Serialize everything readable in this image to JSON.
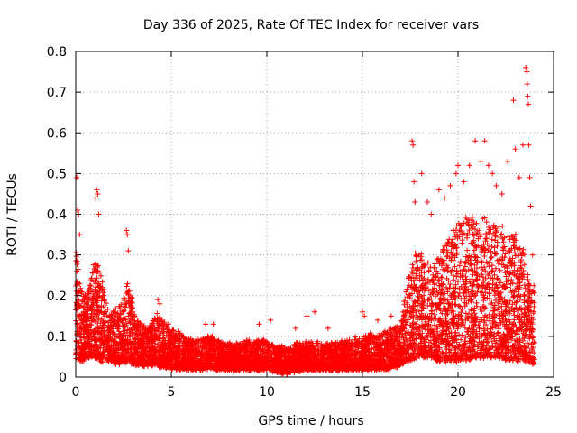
{
  "chart_data": {
    "type": "scatter",
    "title": "Day 336 of 2025, Rate Of TEC Index for receiver vars",
    "xlabel": "GPS time / hours",
    "ylabel": "ROTI / TECUs",
    "xlim": [
      0,
      25
    ],
    "ylim": [
      0,
      0.8
    ],
    "x_ticks": [
      0,
      5,
      10,
      15,
      20,
      25
    ],
    "y_ticks": [
      0,
      0.1,
      0.2,
      0.3,
      0.4,
      0.5,
      0.6,
      0.7,
      0.8
    ],
    "x_tick_labels": [
      "0",
      "5",
      "10",
      "15",
      "20",
      "25"
    ],
    "y_tick_labels": [
      "0",
      "0.1",
      "0.2",
      "0.3",
      "0.4",
      "0.5",
      "0.6",
      "0.7",
      "0.8"
    ],
    "grid": true,
    "marker": "+",
    "color": "#ff0000",
    "envelope": {
      "description_hours": [
        0,
        0.3,
        0.6,
        1.0,
        1.3,
        1.8,
        2.3,
        2.7,
        3.2,
        3.8,
        4.3,
        5.0,
        6.0,
        7.0,
        8.0,
        9.0,
        10.0,
        11.0,
        12.0,
        13.0,
        14.0,
        15.0,
        16.0,
        17.0,
        17.4,
        17.8,
        18.5,
        19.0,
        20.0,
        21.0,
        22.0,
        23.0,
        23.5,
        24.0
      ],
      "upper": [
        0.32,
        0.22,
        0.2,
        0.3,
        0.26,
        0.15,
        0.18,
        0.24,
        0.14,
        0.12,
        0.16,
        0.12,
        0.09,
        0.1,
        0.08,
        0.09,
        0.09,
        0.07,
        0.09,
        0.08,
        0.09,
        0.1,
        0.11,
        0.13,
        0.25,
        0.32,
        0.28,
        0.3,
        0.38,
        0.4,
        0.38,
        0.35,
        0.3,
        0.22
      ],
      "lower": [
        0.05,
        0.04,
        0.05,
        0.05,
        0.04,
        0.04,
        0.03,
        0.04,
        0.03,
        0.03,
        0.03,
        0.02,
        0.02,
        0.02,
        0.02,
        0.02,
        0.02,
        0.01,
        0.02,
        0.02,
        0.02,
        0.02,
        0.02,
        0.03,
        0.04,
        0.05,
        0.05,
        0.04,
        0.04,
        0.05,
        0.05,
        0.04,
        0.04,
        0.03
      ]
    },
    "outliers": [
      {
        "x": 0.05,
        "y": 0.49
      },
      {
        "x": 0.1,
        "y": 0.41
      },
      {
        "x": 0.15,
        "y": 0.4
      },
      {
        "x": 0.2,
        "y": 0.35
      },
      {
        "x": 1.05,
        "y": 0.44
      },
      {
        "x": 1.1,
        "y": 0.46
      },
      {
        "x": 1.15,
        "y": 0.45
      },
      {
        "x": 1.2,
        "y": 0.4
      },
      {
        "x": 2.65,
        "y": 0.36
      },
      {
        "x": 2.7,
        "y": 0.35
      },
      {
        "x": 2.75,
        "y": 0.31
      },
      {
        "x": 4.3,
        "y": 0.19
      },
      {
        "x": 4.4,
        "y": 0.18
      },
      {
        "x": 6.8,
        "y": 0.13
      },
      {
        "x": 7.2,
        "y": 0.13
      },
      {
        "x": 9.6,
        "y": 0.13
      },
      {
        "x": 10.2,
        "y": 0.14
      },
      {
        "x": 11.5,
        "y": 0.12
      },
      {
        "x": 12.1,
        "y": 0.15
      },
      {
        "x": 12.5,
        "y": 0.16
      },
      {
        "x": 13.2,
        "y": 0.12
      },
      {
        "x": 15.0,
        "y": 0.16
      },
      {
        "x": 15.1,
        "y": 0.15
      },
      {
        "x": 15.8,
        "y": 0.14
      },
      {
        "x": 16.5,
        "y": 0.15
      },
      {
        "x": 17.6,
        "y": 0.58
      },
      {
        "x": 17.65,
        "y": 0.57
      },
      {
        "x": 17.7,
        "y": 0.48
      },
      {
        "x": 17.75,
        "y": 0.43
      },
      {
        "x": 18.1,
        "y": 0.5
      },
      {
        "x": 18.4,
        "y": 0.43
      },
      {
        "x": 18.6,
        "y": 0.4
      },
      {
        "x": 19.0,
        "y": 0.46
      },
      {
        "x": 19.3,
        "y": 0.44
      },
      {
        "x": 19.6,
        "y": 0.47
      },
      {
        "x": 19.9,
        "y": 0.5
      },
      {
        "x": 20.0,
        "y": 0.52
      },
      {
        "x": 20.3,
        "y": 0.48
      },
      {
        "x": 20.6,
        "y": 0.52
      },
      {
        "x": 20.9,
        "y": 0.58
      },
      {
        "x": 21.2,
        "y": 0.53
      },
      {
        "x": 21.4,
        "y": 0.58
      },
      {
        "x": 21.6,
        "y": 0.52
      },
      {
        "x": 21.8,
        "y": 0.5
      },
      {
        "x": 22.0,
        "y": 0.47
      },
      {
        "x": 22.3,
        "y": 0.45
      },
      {
        "x": 22.6,
        "y": 0.53
      },
      {
        "x": 22.9,
        "y": 0.68
      },
      {
        "x": 23.0,
        "y": 0.56
      },
      {
        "x": 23.2,
        "y": 0.49
      },
      {
        "x": 23.4,
        "y": 0.57
      },
      {
        "x": 23.55,
        "y": 0.76
      },
      {
        "x": 23.6,
        "y": 0.75
      },
      {
        "x": 23.62,
        "y": 0.72
      },
      {
        "x": 23.65,
        "y": 0.69
      },
      {
        "x": 23.68,
        "y": 0.67
      },
      {
        "x": 23.7,
        "y": 0.57
      },
      {
        "x": 23.75,
        "y": 0.49
      },
      {
        "x": 23.8,
        "y": 0.42
      },
      {
        "x": 23.9,
        "y": 0.3
      }
    ]
  }
}
